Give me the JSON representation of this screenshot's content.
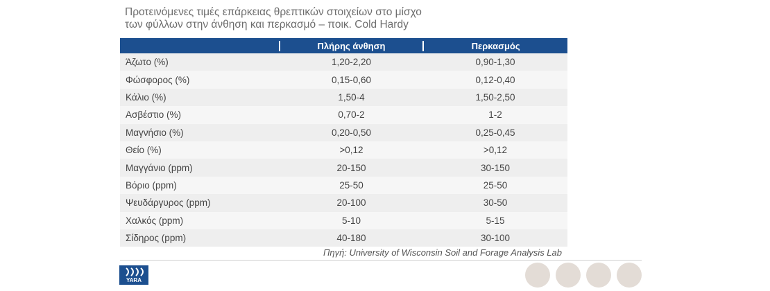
{
  "title": [
    "Προτεινόμενες τιμές επάρκειας θρεπτικών στοιχείων στο μίσχο",
    "των φύλλων στην άνθηση και περκασμό – ποικ. Cold Hardy"
  ],
  "table": {
    "header": [
      "Πλήρης άνθηση",
      "Περκασμός"
    ],
    "rows": [
      [
        "Άζωτο (%)",
        "1,20-2,20",
        "0,90-1,30"
      ],
      [
        "Φώσφορος (%)",
        "0,15-0,60",
        "0,12-0,40"
      ],
      [
        "Κάλιο (%)",
        "1,50-4",
        "1,50-2,50"
      ],
      [
        "Ασβέστιο (%)",
        "0,70-2",
        "1-2"
      ],
      [
        "Μαγνήσιο (%)",
        "0,20-0,50",
        "0,25-0,45"
      ],
      [
        "Θείο (%)",
        ">0,12",
        ">0,12"
      ],
      [
        "Μαγγάνιο (ppm)",
        "20-150",
        "30-150"
      ],
      [
        "Βόριο (ppm)",
        "25-50",
        "25-50"
      ],
      [
        "Ψευδάργυρος (ppm)",
        "20-100",
        "30-50"
      ],
      [
        "Χαλκός (ppm)",
        "5-10",
        "5-15"
      ],
      [
        "Σίδηρος (ppm)",
        "40-180",
        "30-100"
      ]
    ]
  },
  "source": "Πηγή: University of Wisconsin Soil and Forage Analysis Lab",
  "logo": "YARA"
}
